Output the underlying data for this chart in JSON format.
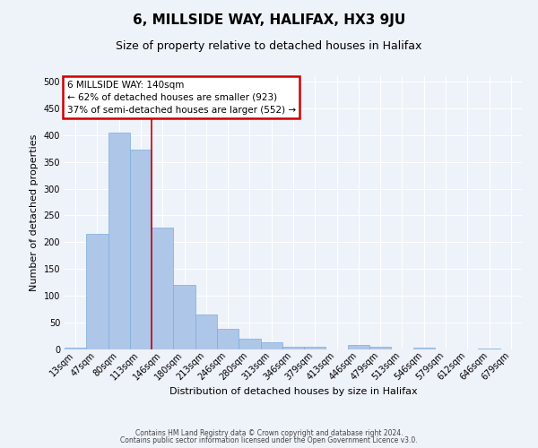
{
  "title": "6, MILLSIDE WAY, HALIFAX, HX3 9JU",
  "subtitle": "Size of property relative to detached houses in Halifax",
  "xlabel": "Distribution of detached houses by size in Halifax",
  "ylabel": "Number of detached properties",
  "bar_labels": [
    "13sqm",
    "47sqm",
    "80sqm",
    "113sqm",
    "146sqm",
    "180sqm",
    "213sqm",
    "246sqm",
    "280sqm",
    "313sqm",
    "346sqm",
    "379sqm",
    "413sqm",
    "446sqm",
    "479sqm",
    "513sqm",
    "546sqm",
    "579sqm",
    "612sqm",
    "646sqm",
    "679sqm"
  ],
  "bar_values": [
    4,
    215,
    405,
    373,
    228,
    120,
    65,
    39,
    20,
    14,
    5,
    5,
    0,
    8,
    5,
    0,
    4,
    0,
    0,
    2,
    0
  ],
  "bar_color": "#aec6e8",
  "bar_edgecolor": "#7aaedb",
  "vline_color": "#cc0000",
  "ylim": [
    0,
    510
  ],
  "yticks": [
    0,
    50,
    100,
    150,
    200,
    250,
    300,
    350,
    400,
    450,
    500
  ],
  "annotation_title": "6 MILLSIDE WAY: 140sqm",
  "annotation_line1": "← 62% of detached houses are smaller (923)",
  "annotation_line2": "37% of semi-detached houses are larger (552) →",
  "annotation_box_edgecolor": "#cc0000",
  "footer1": "Contains HM Land Registry data © Crown copyright and database right 2024.",
  "footer2": "Contains public sector information licensed under the Open Government Licence v3.0.",
  "background_color": "#eef2f9",
  "grid_color": "#ffffff",
  "title_fontsize": 11,
  "subtitle_fontsize": 9,
  "axis_label_fontsize": 8,
  "tick_fontsize": 7,
  "annotation_fontsize": 7.5,
  "footer_fontsize": 5.5
}
